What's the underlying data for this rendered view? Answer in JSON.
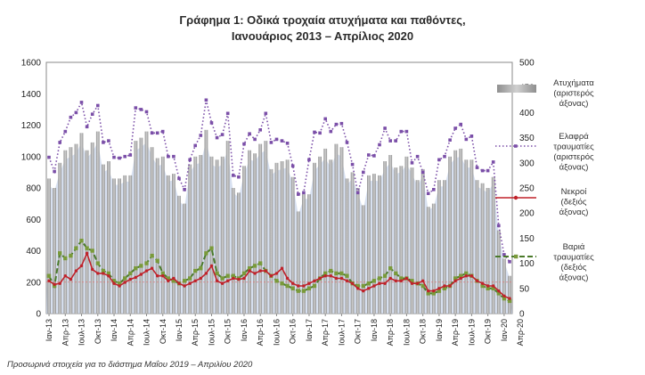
{
  "chart_data": {
    "type": "bar",
    "title_line1": "Γράφημα 1: Οδικά τροχαία ατυχήματα και παθόντες,",
    "title_line2": "Ιανουάριος 2013 – Απρίλιος 2020",
    "footnote": "Προσωρινά στοιχεία για το διάστημα Μαΐου 2019 – Απριλίου 2020",
    "left_axis": {
      "min": 0,
      "max": 1600,
      "step": 200
    },
    "right_axis": {
      "min": 0,
      "max": 500,
      "step": 50
    },
    "x_tick_labels": [
      "Ιαν-13",
      "Απρ-13",
      "Ιουλ-13",
      "Οκτ-13",
      "Ιαν-14",
      "Απρ-14",
      "Ιουλ-14",
      "Οκτ-14",
      "Ιαν-15",
      "Απρ-15",
      "Ιουλ-15",
      "Οκτ-15",
      "Ιαν-16",
      "Απρ-16",
      "Ιουλ-16",
      "Οκτ-16",
      "Ιαν-17",
      "Απρ-17",
      "Ιουλ-17",
      "Οκτ-17",
      "Ιαν-18",
      "Απρ-18",
      "Ιουλ-18",
      "Οκτ-18",
      "Ιαν-19",
      "Απρ-19",
      "Ιουλ-19",
      "Οκτ-19",
      "Ιαν-20",
      "Απρ-20"
    ],
    "legend": [
      {
        "key": "accidents",
        "lines": [
          "Ατυχήματα",
          "(αριστερός",
          "άξονας)"
        ]
      },
      {
        "key": "light",
        "lines": [
          "Ελαφρά",
          "τραυματίες",
          "(αριστερός",
          "άξονας)"
        ]
      },
      {
        "key": "deaths",
        "lines": [
          "Νεκροί",
          "(δεξιός",
          "άξονας)"
        ]
      },
      {
        "key": "serious",
        "lines": [
          "Βαριά",
          "τραυματίες",
          "(δεξιός",
          "άξονας)"
        ]
      }
    ],
    "series": [
      {
        "key": "accidents",
        "axis": "left",
        "style": "bar",
        "color": "#a6a6a6",
        "values": [
          860,
          800,
          960,
          1040,
          1060,
          1080,
          1150,
          1040,
          1090,
          1160,
          950,
          970,
          860,
          860,
          880,
          880,
          1100,
          1120,
          1160,
          1060,
          990,
          1000,
          880,
          890,
          750,
          700,
          950,
          1000,
          1010,
          1170,
          1000,
          980,
          1000,
          1100,
          800,
          770,
          940,
          1040,
          1020,
          1080,
          1100,
          920,
          960,
          970,
          980,
          870,
          650,
          760,
          760,
          960,
          1000,
          1050,
          980,
          1080,
          1060,
          860,
          900,
          800,
          690,
          880,
          890,
          880,
          970,
          1010,
          930,
          940,
          1000,
          930,
          850,
          920,
          680,
          700,
          850,
          850,
          1000,
          1040,
          1050,
          980,
          980,
          850,
          830,
          800,
          870,
          530,
          350,
          240
        ],
        "ribbon_values": [
          820,
          780,
          900,
          980,
          1000,
          1020,
          1090,
          990,
          1030,
          1090,
          900,
          920,
          820,
          820,
          840,
          840,
          1040,
          1060,
          1090,
          1000,
          940,
          950,
          840,
          850,
          720,
          680,
          900,
          950,
          960,
          1100,
          950,
          930,
          950,
          1040,
          770,
          740,
          890,
          980,
          970,
          1020,
          1040,
          880,
          910,
          920,
          930,
          830,
          630,
          730,
          730,
          910,
          950,
          990,
          930,
          1020,
          1000,
          820,
          860,
          770,
          660,
          840,
          850,
          840,
          920,
          960,
          890,
          900,
          950,
          890,
          810,
          880,
          660,
          680,
          810,
          810,
          950,
          990,
          1000,
          930,
          930,
          810,
          790,
          770,
          830,
          510,
          330,
          230
        ]
      },
      {
        "key": "light",
        "axis": "left",
        "style": "dotted",
        "color": "#7b4fa8",
        "values": [
          995,
          905,
          1090,
          1160,
          1250,
          1280,
          1345,
          1190,
          1270,
          1325,
          1090,
          1100,
          995,
          990,
          1000,
          1010,
          1310,
          1300,
          1285,
          1150,
          1150,
          1160,
          1000,
          1000,
          860,
          790,
          980,
          1070,
          1135,
          1360,
          1215,
          1120,
          1140,
          1275,
          880,
          870,
          1080,
          1145,
          1110,
          1170,
          1275,
          1090,
          1110,
          1100,
          1085,
          940,
          760,
          770,
          980,
          1155,
          1150,
          1240,
          1160,
          1205,
          1210,
          1090,
          950,
          770,
          900,
          1010,
          1005,
          1075,
          1180,
          1100,
          1100,
          1160,
          1160,
          960,
          1000,
          900,
          765,
          790,
          980,
          1000,
          1105,
          1180,
          1205,
          1110,
          1130,
          930,
          910,
          910,
          965,
          560,
          375,
          330
        ]
      },
      {
        "key": "deaths",
        "axis": "right",
        "style": "line",
        "color": "#c0222a",
        "values": [
          65,
          58,
          60,
          75,
          68,
          85,
          95,
          120,
          88,
          80,
          80,
          75,
          60,
          55,
          62,
          68,
          72,
          78,
          85,
          90,
          75,
          75,
          65,
          70,
          60,
          55,
          60,
          65,
          70,
          80,
          95,
          65,
          60,
          65,
          70,
          68,
          70,
          85,
          80,
          85,
          85,
          75,
          80,
          90,
          70,
          60,
          55,
          55,
          60,
          65,
          70,
          75,
          75,
          70,
          70,
          65,
          60,
          50,
          45,
          50,
          55,
          60,
          60,
          70,
          65,
          65,
          70,
          60,
          60,
          65,
          45,
          45,
          50,
          55,
          55,
          65,
          70,
          75,
          75,
          65,
          60,
          55,
          55,
          45,
          35,
          30
        ]
      },
      {
        "key": "serious",
        "axis": "right",
        "style": "dashed",
        "color": "#4a7a2a",
        "values": [
          75,
          55,
          120,
          110,
          115,
          130,
          145,
          130,
          125,
          100,
          85,
          80,
          65,
          60,
          70,
          80,
          90,
          95,
          100,
          115,
          105,
          80,
          70,
          65,
          60,
          65,
          70,
          85,
          90,
          120,
          130,
          80,
          70,
          75,
          75,
          70,
          80,
          90,
          95,
          100,
          85,
          75,
          65,
          60,
          55,
          50,
          45,
          45,
          50,
          55,
          70,
          80,
          85,
          80,
          80,
          75,
          60,
          55,
          55,
          60,
          65,
          70,
          75,
          90,
          80,
          70,
          70,
          65,
          60,
          55,
          40,
          40,
          45,
          50,
          55,
          70,
          75,
          80,
          75,
          65,
          55,
          50,
          50,
          40,
          30,
          25
        ]
      }
    ]
  }
}
